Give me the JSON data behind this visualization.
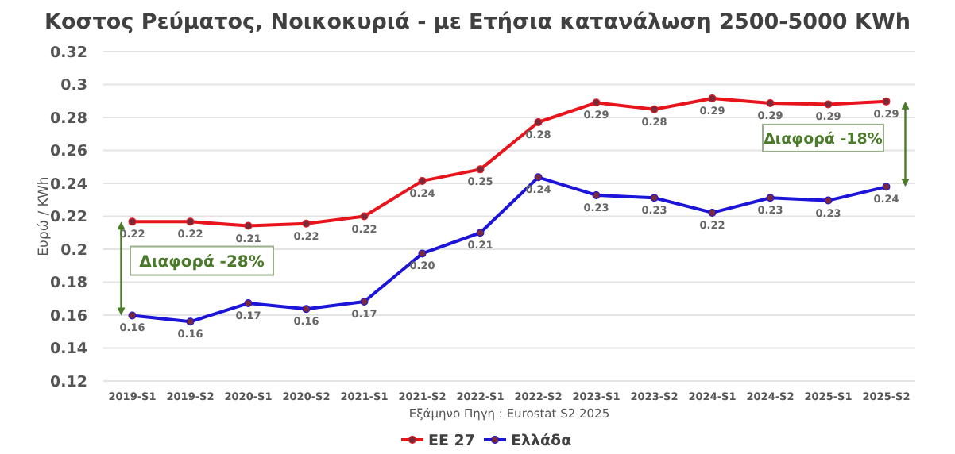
{
  "chart_data": {
    "type": "line",
    "title": "Κοστος Ρεύματος, Νοικοκυριά - με Ετήσια κατανάλωση 2500-5000 KWh",
    "xlabel": "Εξάμηνο Πηγη : Eurostat S2 2025",
    "ylabel": "Ευρώ / KWh",
    "categories": [
      "2019-S1",
      "2019-S2",
      "2020-S1",
      "2020-S2",
      "2021-S1",
      "2021-S2",
      "2022-S1",
      "2022-S2",
      "2023-S1",
      "2023-S2",
      "2024-S1",
      "2024-S2",
      "2025-S1",
      "2025-S2"
    ],
    "series": [
      {
        "name": "ΕΕ 27",
        "color": "#e8141c",
        "values": [
          0.2167,
          0.2167,
          0.2142,
          0.2155,
          0.22,
          0.2415,
          0.2485,
          0.2771,
          0.289,
          0.2849,
          0.2916,
          0.2887,
          0.288,
          0.2897
        ],
        "value_labels": [
          "0.22",
          "0.22",
          "0.21",
          "0.22",
          "0.22",
          "0.24",
          "0.25",
          "0.28",
          "0.29",
          "0.28",
          "0.29",
          "0.29",
          "0.29",
          "0.29"
        ]
      },
      {
        "name": "Ελλάδα",
        "color": "#1c14d8",
        "values": [
          0.1598,
          0.156,
          0.1672,
          0.1637,
          0.1682,
          0.1974,
          0.21,
          0.2437,
          0.2328,
          0.2312,
          0.2222,
          0.2312,
          0.2296,
          0.2379
        ],
        "value_labels": [
          "0.16",
          "0.16",
          "0.17",
          "0.16",
          "0.17",
          "0.20",
          "0.21",
          "0.24",
          "0.23",
          "0.23",
          "0.22",
          "0.23",
          "0.23",
          "0.24"
        ]
      }
    ],
    "annotations": [
      "Διαφορά -28%",
      "Διαφορά -18%"
    ],
    "ylim": [
      0.12,
      0.32
    ],
    "yticks": [
      0.12,
      0.14,
      0.16,
      0.18,
      0.2,
      0.22,
      0.24,
      0.26,
      0.28,
      0.3,
      0.32
    ],
    "grid": "y",
    "legend": "bottom",
    "marker": "circle",
    "line_style": "solid"
  }
}
